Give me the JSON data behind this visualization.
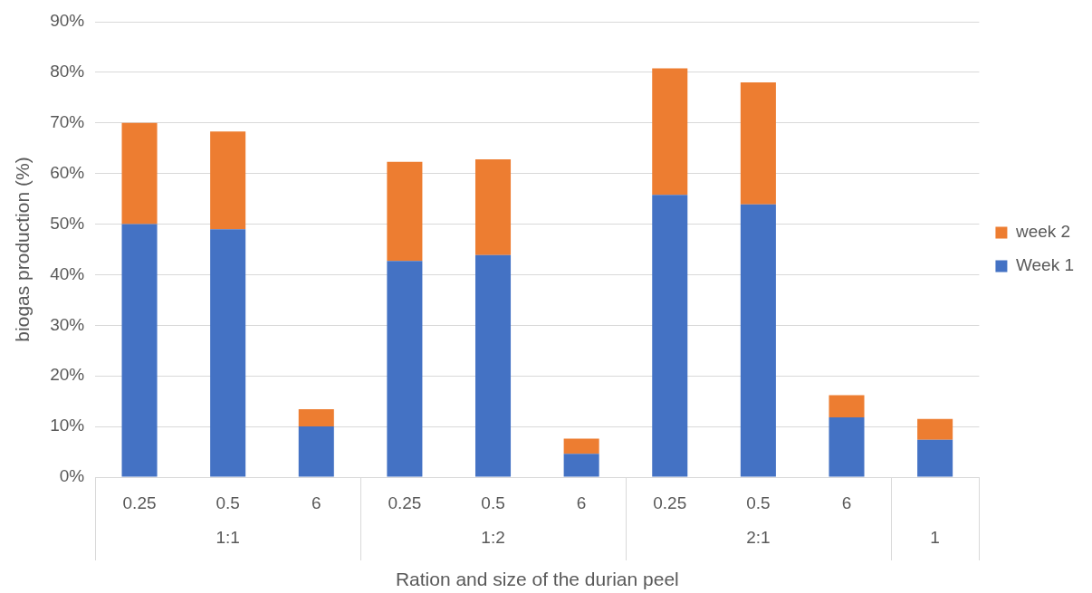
{
  "chart_data": {
    "type": "bar",
    "stacked": true,
    "xlabel": "Ration and size of the durian peel",
    "ylabel": "biogas production (%)",
    "categories": [
      "0.25",
      "0.5",
      "6",
      "0.25",
      "0.5",
      "6",
      "0.25",
      "0.5",
      "6",
      null
    ],
    "annotations": [
      "1:1",
      "1:2",
      "2:1",
      "1"
    ],
    "series": [
      {
        "name": "Week 1",
        "color": "#4472c4",
        "values": [
          50,
          49,
          10,
          42.7,
          43.9,
          4.6,
          55.8,
          53.9,
          11.8,
          7.4
        ]
      },
      {
        "name": "week 2",
        "color": "#ed7d31",
        "values": [
          20,
          19.3,
          3.4,
          19.6,
          18.9,
          3.0,
          25,
          24.1,
          4.4,
          4.1
        ]
      }
    ],
    "ylim": [
      0,
      90
    ],
    "yticks": [
      {
        "value": 0,
        "label": "0%"
      },
      {
        "value": 10,
        "label": "10%"
      },
      {
        "value": 20,
        "label": "20%"
      },
      {
        "value": 30,
        "label": "30%"
      },
      {
        "value": 40,
        "label": "40%"
      },
      {
        "value": 50,
        "label": "50%"
      },
      {
        "value": 60,
        "label": "60%"
      },
      {
        "value": 70,
        "label": "70%"
      },
      {
        "value": 80,
        "label": "80%"
      },
      {
        "value": 90,
        "label": "90%"
      }
    ],
    "grid": "y",
    "legend": "right"
  }
}
